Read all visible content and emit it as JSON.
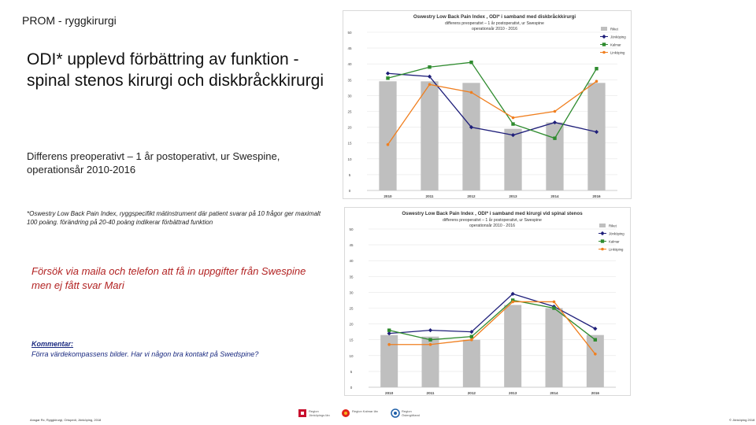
{
  "header": {
    "title": "PROM - ryggkirurgi"
  },
  "main": {
    "title": "ODI* upplevd förbättring av funktion - spinal stenos kirurgi och diskbråckkirurgi",
    "subtitle": "Differens preoperativt – 1 år postoperativt, ur Swespine, operationsår 2010-2016",
    "footnote": "*Oswestry Low Back Pain Index, ryggspecifikt mätinstrument där patient svarar på 10 frågor ger maximalt 100 poäng. förändring på 20-40 poäng indikerar förbättrad funktion",
    "note": "Försök via maila och telefon att få in uppgifter från Swespine men ej fått svar Mari",
    "comment_label": "Kommentar:",
    "comment_text": "Förra värdekompassens bilder. Har vi någon bra kontakt på Swedspine?"
  },
  "footer": {
    "left": "Ansgar Rc, Ryggkirurgi, Ortopedi, Jönköping, 2018",
    "right": "© Jönköping 2018",
    "logos": [
      {
        "text": "Region Jönköpings län",
        "color": "#c8102e"
      },
      {
        "text": "Region Kalmar län",
        "color": "#e2231a"
      },
      {
        "text": "Region Östergötland",
        "color": "#1f5fa8"
      }
    ]
  },
  "colors": {
    "bar": "#bfbfbf",
    "jonkoping": "#1f1f7a",
    "kalmar": "#2e8b2e",
    "linkoping": "#f07f1f",
    "grid": "#e6e6e6"
  },
  "chart_data": [
    {
      "type": "bar",
      "title": "Oswestry Low Back Pain Index , ODI* i samband med diskbråckkirurgi",
      "subtitle1": "differens preoperativt – 1 år postoperativt, ur Swespine",
      "subtitle2": "operationsår 2010 - 2016",
      "categories": [
        "2010",
        "2011",
        "2012",
        "2013",
        "2014",
        "2016"
      ],
      "ylim": [
        0,
        50
      ],
      "yticks": [
        "0",
        "5",
        "10",
        "15",
        "20",
        "25",
        "30",
        "35",
        "40",
        "45",
        "50"
      ],
      "series": [
        {
          "name": "Riket",
          "kind": "bar",
          "values": [
            34.5,
            34.5,
            34,
            19.5,
            21.5,
            34
          ]
        },
        {
          "name": "Jönköping",
          "kind": "line",
          "values": [
            37,
            36,
            20,
            17.5,
            21.5,
            18.5
          ]
        },
        {
          "name": "Kalmar",
          "kind": "line",
          "values": [
            35.5,
            39,
            40.5,
            21,
            16.5,
            38.5
          ]
        },
        {
          "name": "Linköping",
          "kind": "line",
          "values": [
            14.5,
            33.5,
            31,
            23,
            25,
            34.5
          ]
        }
      ]
    },
    {
      "type": "bar",
      "title": "Oswestry Low Back Pain Index , ODI* i samband med kirurgi vid spinal stenos",
      "subtitle1": "differens preoperativt – 1 år postoperativt, ur Swespine",
      "subtitle2": "operationsår 2010 - 2016",
      "categories": [
        "2010",
        "2011",
        "2012",
        "2013",
        "2014",
        "2016"
      ],
      "ylim": [
        0,
        50
      ],
      "yticks": [
        "0",
        "5",
        "10",
        "15",
        "20",
        "25",
        "30",
        "35",
        "40",
        "45",
        "50"
      ],
      "series": [
        {
          "name": "Riket",
          "kind": "bar",
          "values": [
            16.5,
            16,
            15,
            26,
            25,
            16.5
          ]
        },
        {
          "name": "Jönköping",
          "kind": "line",
          "values": [
            17,
            18,
            17.5,
            29.5,
            25.5,
            18.5
          ]
        },
        {
          "name": "Kalmar",
          "kind": "line",
          "values": [
            18,
            15,
            16,
            27.5,
            25,
            15
          ]
        },
        {
          "name": "Linköping",
          "kind": "line",
          "values": [
            13.5,
            13.5,
            15,
            27,
            27,
            10.5
          ]
        }
      ]
    }
  ]
}
